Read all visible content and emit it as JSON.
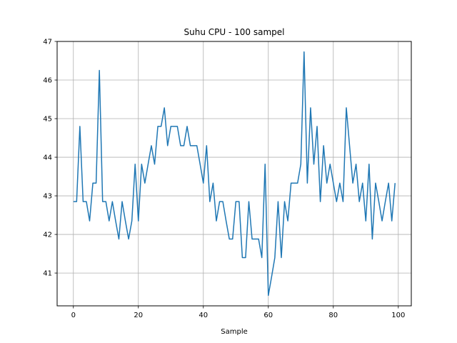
{
  "chart_data": {
    "type": "line",
    "title": "Suhu CPU - 100 sampel",
    "xlabel": "Sample",
    "ylabel": "",
    "xlim": [
      -5,
      104
    ],
    "ylim": [
      40.15,
      47.0
    ],
    "xticks": [
      0,
      20,
      40,
      60,
      80,
      100
    ],
    "yticks": [
      41,
      42,
      43,
      44,
      45,
      46,
      47
    ],
    "grid": true,
    "legend": "none",
    "series": [
      {
        "color": "#1f77b4",
        "x": [
          0,
          1,
          2,
          3,
          4,
          5,
          6,
          7,
          8,
          9,
          10,
          11,
          12,
          13,
          14,
          15,
          16,
          17,
          18,
          19,
          20,
          21,
          22,
          23,
          24,
          25,
          26,
          27,
          28,
          29,
          30,
          31,
          32,
          33,
          34,
          35,
          36,
          37,
          38,
          39,
          40,
          41,
          42,
          43,
          44,
          45,
          46,
          47,
          48,
          49,
          50,
          51,
          52,
          53,
          54,
          55,
          56,
          57,
          58,
          59,
          60,
          61,
          62,
          63,
          64,
          65,
          66,
          67,
          68,
          69,
          70,
          71,
          72,
          73,
          74,
          75,
          76,
          77,
          78,
          79,
          80,
          81,
          82,
          83,
          84,
          85,
          86,
          87,
          88,
          89,
          90,
          91,
          92,
          93,
          94,
          95,
          96,
          97,
          98,
          99
        ],
        "values": [
          42.85,
          42.85,
          44.8,
          42.85,
          42.85,
          42.35,
          43.33,
          43.33,
          46.25,
          42.85,
          42.85,
          42.35,
          42.85,
          42.35,
          41.88,
          42.85,
          42.35,
          41.88,
          42.35,
          43.82,
          42.35,
          43.82,
          43.33,
          43.82,
          44.3,
          43.82,
          44.8,
          44.8,
          45.28,
          44.3,
          44.8,
          44.8,
          44.8,
          44.3,
          44.3,
          44.8,
          44.3,
          44.3,
          44.3,
          43.82,
          43.33,
          44.3,
          42.85,
          43.33,
          42.35,
          42.85,
          42.85,
          42.35,
          41.88,
          41.88,
          42.85,
          42.85,
          41.4,
          41.4,
          42.85,
          41.88,
          41.88,
          41.88,
          41.4,
          43.82,
          40.42,
          40.9,
          41.4,
          42.85,
          41.4,
          42.85,
          42.35,
          43.33,
          43.33,
          43.33,
          43.82,
          46.73,
          43.33,
          45.28,
          43.82,
          44.8,
          42.85,
          44.3,
          43.33,
          43.82,
          43.33,
          42.85,
          43.33,
          42.85,
          45.28,
          44.3,
          43.33,
          43.82,
          42.85,
          43.33,
          42.35,
          43.82,
          41.88,
          43.33,
          42.85,
          42.35,
          42.85,
          43.33,
          42.35,
          43.33
        ]
      }
    ]
  }
}
